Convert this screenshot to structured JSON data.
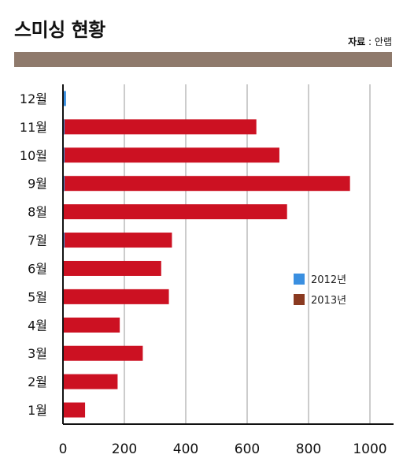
{
  "header": {
    "title": "스미싱 현황",
    "source_label": "자료",
    "source_sep": " : ",
    "source_value": "안랩"
  },
  "colors": {
    "band": "#8f7a6c",
    "series_2012": "#3a8fe0",
    "series_2013": "#cc1122",
    "series_2013_legend": "#8a3a20",
    "grid": "#999999",
    "axis": "#111111"
  },
  "chart_data": {
    "type": "bar",
    "orientation": "horizontal",
    "categories": [
      "12월",
      "11월",
      "10월",
      "9월",
      "8월",
      "7월",
      "6월",
      "5월",
      "4월",
      "3월",
      "2월",
      "1월"
    ],
    "series": [
      {
        "name": "2012년",
        "values": [
          10,
          3,
          3,
          3,
          0,
          3,
          0,
          0,
          0,
          0,
          0,
          0
        ]
      },
      {
        "name": "2013년",
        "values": [
          0,
          630,
          705,
          935,
          730,
          355,
          320,
          345,
          185,
          260,
          178,
          72
        ]
      }
    ],
    "xticks": [
      "0",
      "200",
      "400",
      "600",
      "800",
      "1000"
    ],
    "xlim": [
      0,
      1000
    ],
    "grid": true,
    "legend_position": "center-right"
  }
}
